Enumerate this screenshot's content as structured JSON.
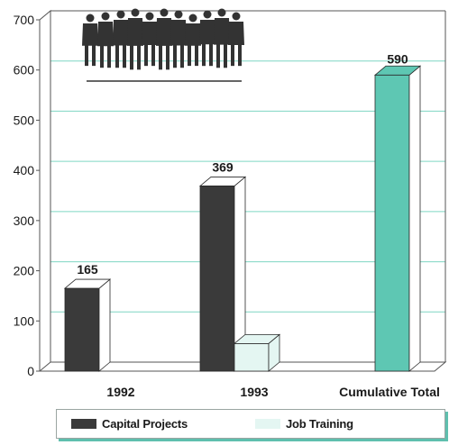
{
  "colors": {
    "capital": "#3a3a3a",
    "capital_side": "#ffffff",
    "job": "#e4f6f2",
    "cumulative": "#5ec7b3",
    "grid": "#7fd6c3",
    "axis": "#555555"
  },
  "illustration": "people-silhouette-icon",
  "chart_data": {
    "type": "bar",
    "categories": [
      "1992",
      "1993",
      "Cumulative Total"
    ],
    "series": [
      {
        "name": "Capital Projects",
        "values": [
          165,
          369,
          null
        ]
      },
      {
        "name": "Job Training",
        "values": [
          0,
          55,
          null
        ]
      },
      {
        "name": "",
        "values": [
          null,
          null,
          590
        ]
      }
    ],
    "data_labels": [
      "165",
      "369",
      "590"
    ],
    "yticks": [
      "0",
      "100",
      "200",
      "300",
      "400",
      "500",
      "600",
      "700"
    ],
    "ylim": [
      0,
      700
    ],
    "grid": true,
    "legend": {
      "placement": "bottom",
      "items": [
        "Capital Projects",
        "Job Training"
      ]
    },
    "title": "",
    "xlabel": "",
    "ylabel": ""
  }
}
